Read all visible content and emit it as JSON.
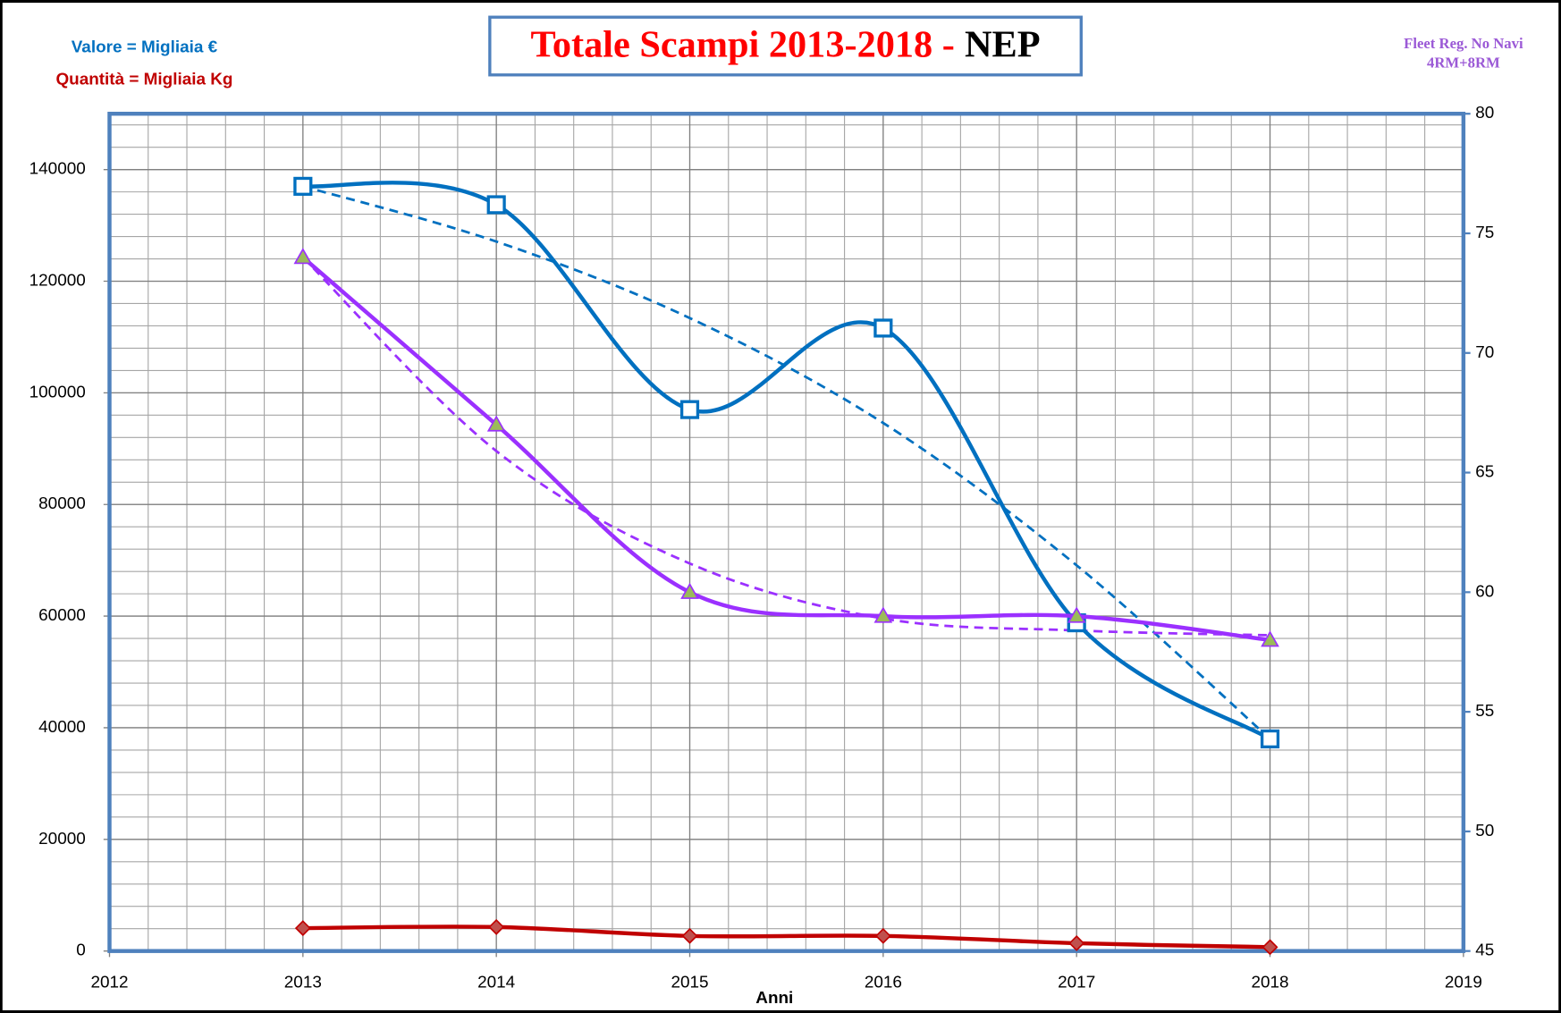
{
  "chart_data": {
    "type": "line",
    "title": {
      "text": "Totale Scampi 2013-2018 -",
      "highlight": "NEP"
    },
    "annotations": [
      "Valore = Migliaia €",
      "Quantità = Migliaia Kg",
      "Fleet Reg. No Navi",
      "4RM+8RM"
    ],
    "xlabel": "Anni",
    "x": [
      2013,
      2014,
      2015,
      2016,
      2017,
      2018
    ],
    "xlim": [
      2012,
      2019
    ],
    "xticks": [
      2012,
      2013,
      2014,
      2015,
      2016,
      2017,
      2018,
      2019
    ],
    "ylim": [
      0,
      150000
    ],
    "yticks": [
      0,
      20000,
      40000,
      60000,
      80000,
      100000,
      120000,
      140000
    ],
    "y2lim": [
      45,
      80
    ],
    "y2ticks": [
      45,
      50,
      55,
      60,
      65,
      70,
      75,
      80
    ],
    "grid": true,
    "minor_divisions": 5,
    "smooth": true,
    "series": [
      {
        "color": "#0070c0",
        "dashed": true,
        "values": [
          137000,
          127100,
          113400,
          94600,
          69100,
          38000
        ]
      },
      {
        "color": "#9b30ff",
        "dashed": true,
        "axis": "y2",
        "values": [
          74,
          65.9,
          61.2,
          58.9,
          58.4,
          58.2
        ]
      },
      {
        "name": "Valore",
        "color": "#0070c0",
        "marker": "square",
        "marker_fill": "#ffffff",
        "values": [
          137000,
          133700,
          97000,
          111600,
          58800,
          38000
        ]
      },
      {
        "name": "Quantità",
        "color": "#c00000",
        "marker": "diamond",
        "marker_fill": "#c0504d",
        "values": [
          4100,
          4300,
          2700,
          2700,
          1400,
          700
        ]
      },
      {
        "name": "Fleet",
        "color": "#9b30ff",
        "marker": "triangle",
        "marker_fill": "#9bbb59",
        "axis": "y2",
        "values": [
          74,
          67,
          60,
          59,
          59,
          58
        ]
      }
    ]
  }
}
